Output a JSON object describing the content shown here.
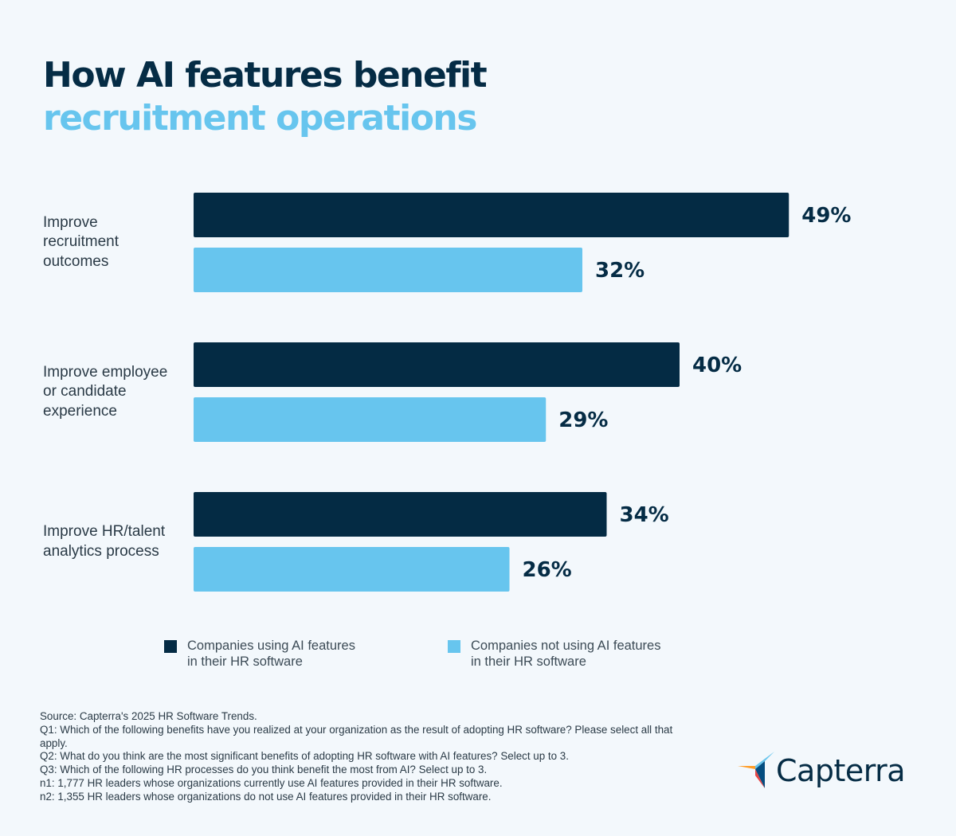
{
  "title": {
    "line1": "How AI features benefit",
    "line2": "recruitment operations"
  },
  "colors": {
    "using_ai": "#042b44",
    "not_using_ai": "#67c5ee",
    "background": "#f3f8fc"
  },
  "chart_data": {
    "type": "bar",
    "orientation": "horizontal",
    "categories": [
      "Improve recruitment outcomes",
      "Improve employee or candidate experience",
      "Improve HR/talent analytics process"
    ],
    "category_lines": [
      [
        "Improve",
        "recruitment",
        "outcomes"
      ],
      [
        "Improve employee",
        "or candidate",
        "experience"
      ],
      [
        "Improve HR/talent",
        "analytics process"
      ]
    ],
    "series": [
      {
        "name": "Companies using AI features in their HR software",
        "values": [
          49,
          40,
          34
        ]
      },
      {
        "name": "Companies not using AI features in their HR software",
        "values": [
          32,
          29,
          26
        ]
      }
    ],
    "value_labels": [
      [
        "49%",
        "40%",
        "34%"
      ],
      [
        "32%",
        "29%",
        "26%"
      ]
    ],
    "unit": "%",
    "xlim": [
      0,
      100
    ],
    "grid": false,
    "legend_placement": "bottom"
  },
  "legend": {
    "using_ai": [
      "Companies using AI features",
      "in their HR software"
    ],
    "not_using_ai": [
      "Companies not using AI features",
      "in their HR software"
    ]
  },
  "source": [
    "Source: Capterra's 2025 HR Software Trends.",
    "Q1: Which of the following benefits have you realized at your organization as the result of adopting HR software? Please select all that apply.",
    "Q2: What do you think are the most significant benefits of adopting HR software with AI features? Select up to 3.",
    "Q3: Which of the following HR processes do you think benefit the most from AI? Select up to 3.",
    "n1: 1,777 HR leaders whose organizations currently use AI features provided in their HR software.",
    "n2: 1,355 HR leaders whose organizations do not use AI features provided in their HR software."
  ],
  "logo": {
    "text": "Capterra",
    "icon": "capterra-arrow-icon"
  }
}
